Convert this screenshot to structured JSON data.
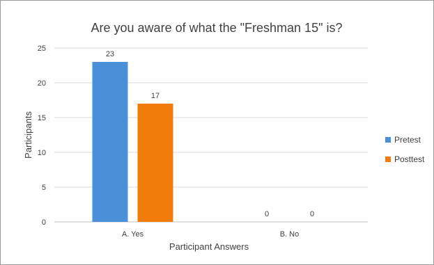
{
  "chart_data": {
    "type": "bar",
    "title": "Are you aware of what the \"Freshman 15\" is?",
    "xlabel": "Participant Answers",
    "ylabel": "Participants",
    "categories": [
      "A. Yes",
      "B. No"
    ],
    "series": [
      {
        "name": "Pretest",
        "values": [
          23,
          0
        ],
        "color": "#4a90d9"
      },
      {
        "name": "Posttest",
        "values": [
          17,
          0
        ],
        "color": "#f27c0a"
      }
    ],
    "ylim": [
      0,
      25
    ],
    "yticks": [
      0,
      5,
      10,
      15,
      20,
      25
    ],
    "grid": true,
    "legend": "right",
    "data_labels": true
  }
}
